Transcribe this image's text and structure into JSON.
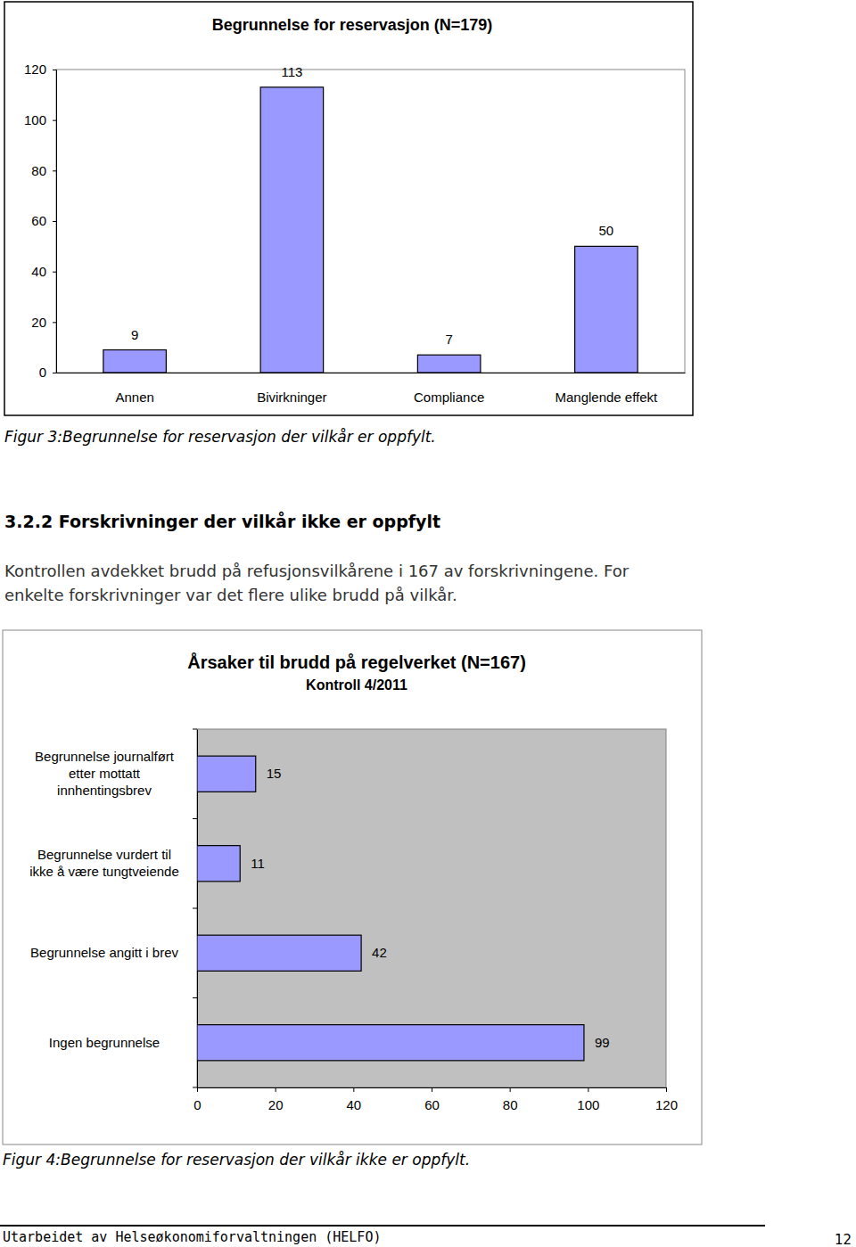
{
  "chart_data": [
    {
      "type": "bar",
      "title": "Begrunnelse for reservasjon (N=179)",
      "categories": [
        "Annen",
        "Bivirkninger",
        "Compliance",
        "Manglende effekt"
      ],
      "values": [
        9,
        113,
        7,
        50
      ],
      "color": "#9999ff",
      "ylim": [
        0,
        120
      ],
      "yticks": [
        0,
        20,
        40,
        60,
        80,
        100,
        120
      ],
      "grid": false,
      "data_labels": true
    },
    {
      "type": "bar",
      "orientation": "horizontal",
      "title": "Årsaker til brudd på regelverket (N=167)",
      "subtitle": "Kontroll 4/2011",
      "categories": [
        "Begrunnelse journalført\netter mottatt\ninnhentingsbrev",
        "Begrunnelse vurdert til\nikke å være tungtveiende",
        "Begrunnelse angitt i brev",
        "Ingen begrunnelse"
      ],
      "values": [
        15,
        11,
        42,
        99
      ],
      "color": "#9999ff",
      "xlim": [
        0,
        120
      ],
      "xticks": [
        0,
        20,
        40,
        60,
        80,
        100,
        120
      ],
      "grid": false,
      "data_labels": true
    }
  ],
  "page": {
    "figure_captions": [
      "Figur 3:Begrunnelse for reservasjon der vilkår er oppfylt.",
      "Figur 4:Begrunnelse for reservasjon der vilkår ikke er oppfylt."
    ],
    "section_heading": "3.2.2 Forskrivninger der vilkår ikke er oppfylt",
    "paragraph_lines": [
      "Kontrollen avdekket brudd på refusjonsvilkårene i 167 av forskrivningene. For",
      "enkelte forskrivninger var det flere ulike brudd på vilkår."
    ],
    "footer": "Utarbeidet av Helseøkonomiforvaltningen (HELFO)",
    "page_number": 12
  }
}
